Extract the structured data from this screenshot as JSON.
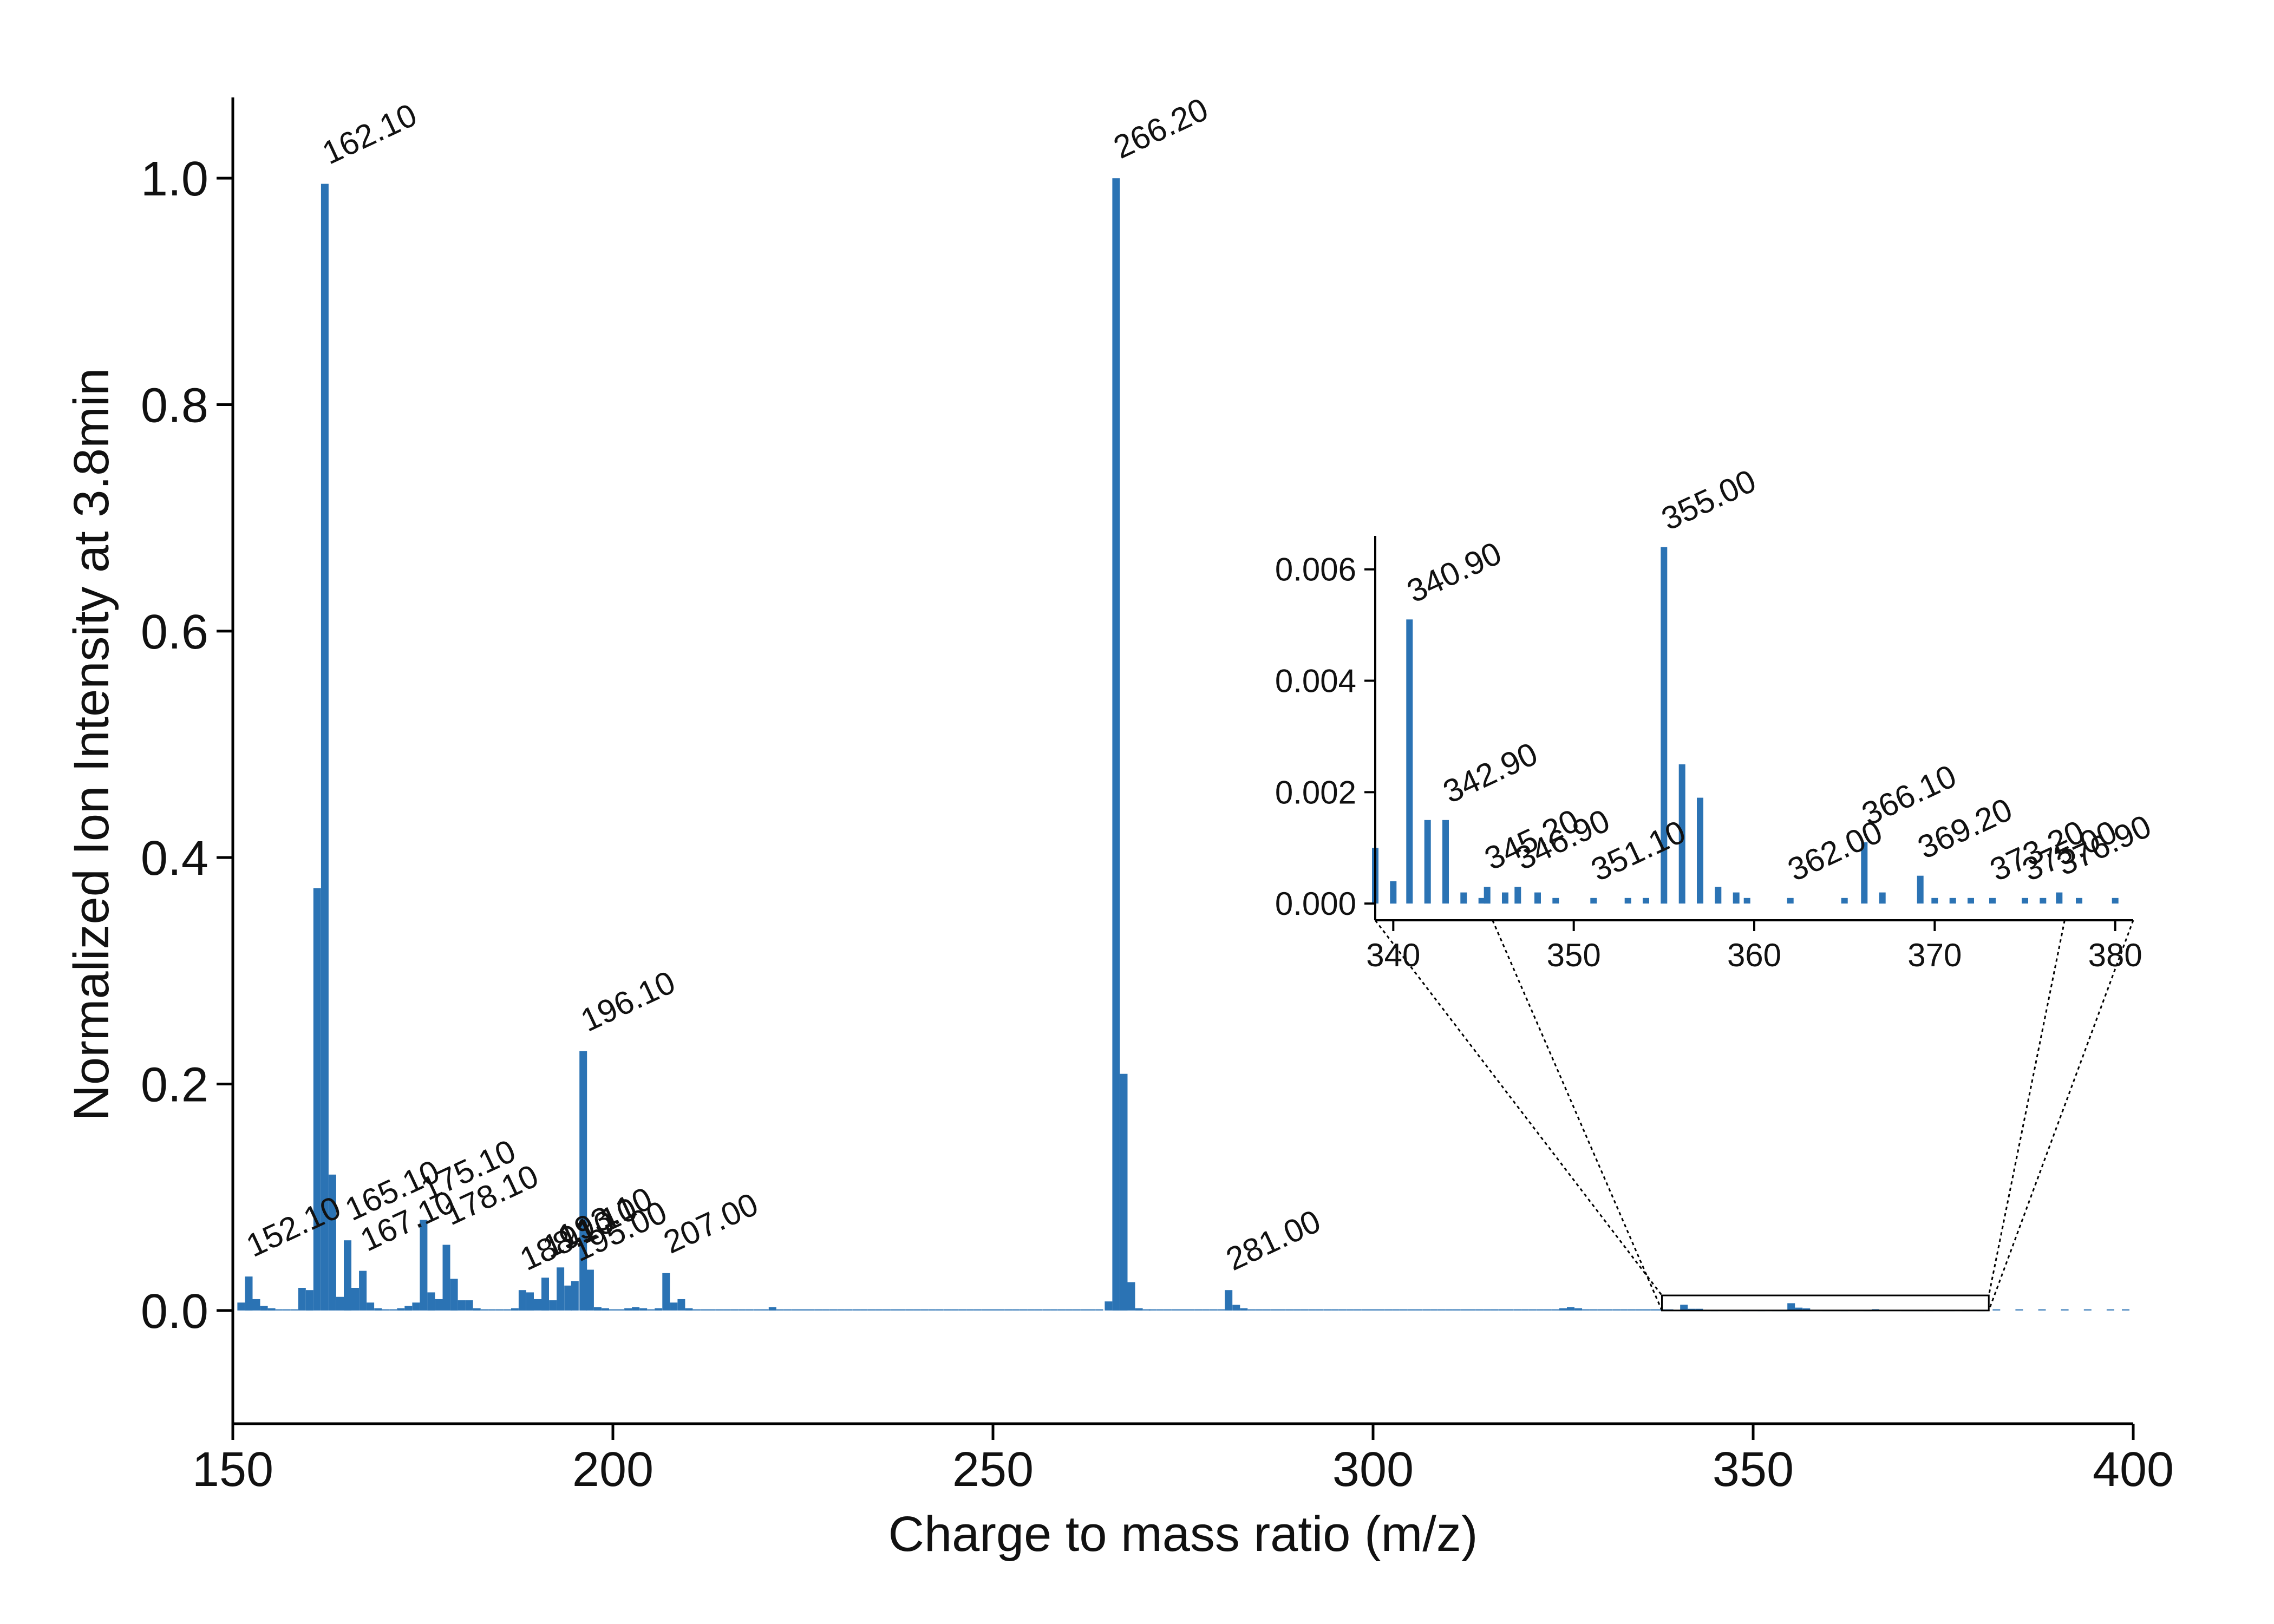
{
  "chart_data": [
    {
      "type": "bar",
      "title": "",
      "xlabel": "Charge to mass ratio (m/z)",
      "ylabel": "Normalized Ion Intensity at 3.8min",
      "xlim": [
        150,
        400
      ],
      "ylim": [
        -0.1,
        1.1
      ],
      "xticks": [
        150,
        200,
        250,
        300,
        350,
        400
      ],
      "xtick_labels": [
        "150",
        "200",
        "250",
        "300",
        "350",
        "400"
      ],
      "yticks": [
        0.0,
        0.2,
        0.4,
        0.6,
        0.8,
        1.0
      ],
      "ytick_labels": [
        "0.0",
        "0.2",
        "0.4",
        "0.6",
        "0.8",
        "1.0"
      ],
      "grid": false,
      "color": "#2b73b4",
      "points": [
        {
          "x": 151.1,
          "y": 0.007
        },
        {
          "x": 152.1,
          "y": 0.03
        },
        {
          "x": 153.1,
          "y": 0.01
        },
        {
          "x": 154.1,
          "y": 0.004
        },
        {
          "x": 155.1,
          "y": 0.002
        },
        {
          "x": 156.1,
          "y": 0.001
        },
        {
          "x": 157.1,
          "y": 0.001
        },
        {
          "x": 158.1,
          "y": 0.001
        },
        {
          "x": 159.1,
          "y": 0.02
        },
        {
          "x": 160.1,
          "y": 0.018
        },
        {
          "x": 161.1,
          "y": 0.373
        },
        {
          "x": 162.1,
          "y": 0.995
        },
        {
          "x": 163.1,
          "y": 0.12
        },
        {
          "x": 164.1,
          "y": 0.012
        },
        {
          "x": 165.1,
          "y": 0.062
        },
        {
          "x": 166.1,
          "y": 0.02
        },
        {
          "x": 167.1,
          "y": 0.035
        },
        {
          "x": 168.1,
          "y": 0.007
        },
        {
          "x": 169.1,
          "y": 0.002
        },
        {
          "x": 170.1,
          "y": 0.001
        },
        {
          "x": 171.1,
          "y": 0.001
        },
        {
          "x": 172.1,
          "y": 0.002
        },
        {
          "x": 173.1,
          "y": 0.004
        },
        {
          "x": 174.1,
          "y": 0.007
        },
        {
          "x": 175.1,
          "y": 0.08
        },
        {
          "x": 176.1,
          "y": 0.016
        },
        {
          "x": 177.1,
          "y": 0.01
        },
        {
          "x": 178.1,
          "y": 0.058
        },
        {
          "x": 179.1,
          "y": 0.028
        },
        {
          "x": 180.1,
          "y": 0.009
        },
        {
          "x": 181.1,
          "y": 0.009
        },
        {
          "x": 182.1,
          "y": 0.002
        },
        {
          "x": 183.1,
          "y": 0.001
        },
        {
          "x": 184.1,
          "y": 0.001
        },
        {
          "x": 185.1,
          "y": 0.001
        },
        {
          "x": 186.1,
          "y": 0.001
        },
        {
          "x": 187.1,
          "y": 0.002
        },
        {
          "x": 188.1,
          "y": 0.018
        },
        {
          "x": 189.1,
          "y": 0.016
        },
        {
          "x": 190.1,
          "y": 0.01
        },
        {
          "x": 191.1,
          "y": 0.029
        },
        {
          "x": 192.1,
          "y": 0.009
        },
        {
          "x": 193.1,
          "y": 0.038
        },
        {
          "x": 194.1,
          "y": 0.022
        },
        {
          "x": 195.0,
          "y": 0.026
        },
        {
          "x": 196.1,
          "y": 0.229
        },
        {
          "x": 197.0,
          "y": 0.036
        },
        {
          "x": 198.0,
          "y": 0.003
        },
        {
          "x": 199.0,
          "y": 0.002
        },
        {
          "x": 200.0,
          "y": 0.001
        },
        {
          "x": 201.0,
          "y": 0.001
        },
        {
          "x": 202.0,
          "y": 0.002
        },
        {
          "x": 203.0,
          "y": 0.003
        },
        {
          "x": 204.0,
          "y": 0.002
        },
        {
          "x": 205.0,
          "y": 0.001
        },
        {
          "x": 206.0,
          "y": 0.002
        },
        {
          "x": 207.0,
          "y": 0.033
        },
        {
          "x": 208.0,
          "y": 0.007
        },
        {
          "x": 209.0,
          "y": 0.01
        },
        {
          "x": 210.0,
          "y": 0.002
        },
        {
          "x": 211.0,
          "y": 0.001
        },
        {
          "x": 212.0,
          "y": 0.001
        },
        {
          "x": 213.0,
          "y": 0.001
        },
        {
          "x": 214.0,
          "y": 0.001
        },
        {
          "x": 215.0,
          "y": 0.001
        },
        {
          "x": 216.0,
          "y": 0.001
        },
        {
          "x": 217.0,
          "y": 0.001
        },
        {
          "x": 218.0,
          "y": 0.001
        },
        {
          "x": 219.0,
          "y": 0.001
        },
        {
          "x": 220.0,
          "y": 0.001
        },
        {
          "x": 221.0,
          "y": 0.003
        },
        {
          "x": 222.0,
          "y": 0.001
        },
        {
          "x": 223.0,
          "y": 0.001
        },
        {
          "x": 224.0,
          "y": 0.001
        },
        {
          "x": 225.0,
          "y": 0.001
        },
        {
          "x": 226.0,
          "y": 0.001
        },
        {
          "x": 227.0,
          "y": 0.001
        },
        {
          "x": 228.0,
          "y": 0.001
        },
        {
          "x": 229.0,
          "y": 0.001
        },
        {
          "x": 230.0,
          "y": 0.001
        },
        {
          "x": 231.0,
          "y": 0.001
        },
        {
          "x": 232.0,
          "y": 0.001
        },
        {
          "x": 233.0,
          "y": 0.001
        },
        {
          "x": 234.0,
          "y": 0.001
        },
        {
          "x": 235.0,
          "y": 0.001
        },
        {
          "x": 236.0,
          "y": 0.001
        },
        {
          "x": 237.0,
          "y": 0.001
        },
        {
          "x": 238.0,
          "y": 0.001
        },
        {
          "x": 239.0,
          "y": 0.001
        },
        {
          "x": 240.0,
          "y": 0.001
        },
        {
          "x": 241.0,
          "y": 0.001
        },
        {
          "x": 242.0,
          "y": 0.001
        },
        {
          "x": 243.0,
          "y": 0.001
        },
        {
          "x": 244.0,
          "y": 0.001
        },
        {
          "x": 245.0,
          "y": 0.001
        },
        {
          "x": 246.0,
          "y": 0.001
        },
        {
          "x": 247.0,
          "y": 0.001
        },
        {
          "x": 248.0,
          "y": 0.001
        },
        {
          "x": 249.0,
          "y": 0.001
        },
        {
          "x": 250.0,
          "y": 0.001
        },
        {
          "x": 251.0,
          "y": 0.001
        },
        {
          "x": 252.0,
          "y": 0.001
        },
        {
          "x": 253.0,
          "y": 0.001
        },
        {
          "x": 254.0,
          "y": 0.001
        },
        {
          "x": 255.0,
          "y": 0.001
        },
        {
          "x": 256.0,
          "y": 0.001
        },
        {
          "x": 257.0,
          "y": 0.001
        },
        {
          "x": 258.0,
          "y": 0.001
        },
        {
          "x": 259.0,
          "y": 0.001
        },
        {
          "x": 260.0,
          "y": 0.001
        },
        {
          "x": 261.0,
          "y": 0.001
        },
        {
          "x": 262.0,
          "y": 0.001
        },
        {
          "x": 263.0,
          "y": 0.001
        },
        {
          "x": 264.0,
          "y": 0.001
        },
        {
          "x": 265.2,
          "y": 0.008
        },
        {
          "x": 266.2,
          "y": 1.0
        },
        {
          "x": 267.2,
          "y": 0.209
        },
        {
          "x": 268.2,
          "y": 0.025
        },
        {
          "x": 269.2,
          "y": 0.002
        },
        {
          "x": 270.2,
          "y": 0.001
        },
        {
          "x": 271.0,
          "y": 0.001
        },
        {
          "x": 272.0,
          "y": 0.001
        },
        {
          "x": 273.0,
          "y": 0.001
        },
        {
          "x": 274.0,
          "y": 0.001
        },
        {
          "x": 275.0,
          "y": 0.001
        },
        {
          "x": 276.0,
          "y": 0.001
        },
        {
          "x": 277.0,
          "y": 0.001
        },
        {
          "x": 278.0,
          "y": 0.001
        },
        {
          "x": 279.0,
          "y": 0.001
        },
        {
          "x": 280.0,
          "y": 0.001
        },
        {
          "x": 281.0,
          "y": 0.018
        },
        {
          "x": 282.0,
          "y": 0.005
        },
        {
          "x": 283.0,
          "y": 0.002
        },
        {
          "x": 284.0,
          "y": 0.001
        },
        {
          "x": 285.0,
          "y": 0.001
        },
        {
          "x": 286.0,
          "y": 0.001
        },
        {
          "x": 287.0,
          "y": 0.001
        },
        {
          "x": 288.0,
          "y": 0.001
        },
        {
          "x": 289.0,
          "y": 0.001
        },
        {
          "x": 290.0,
          "y": 0.001
        },
        {
          "x": 291.0,
          "y": 0.001
        },
        {
          "x": 292.0,
          "y": 0.001
        },
        {
          "x": 293.0,
          "y": 0.001
        },
        {
          "x": 294.0,
          "y": 0.001
        },
        {
          "x": 295.0,
          "y": 0.001
        },
        {
          "x": 296.0,
          "y": 0.001
        },
        {
          "x": 297.0,
          "y": 0.001
        },
        {
          "x": 298.0,
          "y": 0.001
        },
        {
          "x": 299.0,
          "y": 0.001
        },
        {
          "x": 300.0,
          "y": 0.001
        },
        {
          "x": 301.0,
          "y": 0.001
        },
        {
          "x": 302.0,
          "y": 0.001
        },
        {
          "x": 303.0,
          "y": 0.001
        },
        {
          "x": 304.0,
          "y": 0.001
        },
        {
          "x": 305.0,
          "y": 0.001
        },
        {
          "x": 306.0,
          "y": 0.001
        },
        {
          "x": 307.0,
          "y": 0.001
        },
        {
          "x": 308.0,
          "y": 0.001
        },
        {
          "x": 309.0,
          "y": 0.001
        },
        {
          "x": 310.0,
          "y": 0.001
        },
        {
          "x": 311.0,
          "y": 0.001
        },
        {
          "x": 312.0,
          "y": 0.001
        },
        {
          "x": 313.0,
          "y": 0.001
        },
        {
          "x": 314.0,
          "y": 0.001
        },
        {
          "x": 315.0,
          "y": 0.001
        },
        {
          "x": 316.0,
          "y": 0.001
        },
        {
          "x": 317.0,
          "y": 0.001
        },
        {
          "x": 318.0,
          "y": 0.001
        },
        {
          "x": 319.0,
          "y": 0.001
        },
        {
          "x": 320.0,
          "y": 0.001
        },
        {
          "x": 321.0,
          "y": 0.001
        },
        {
          "x": 322.0,
          "y": 0.001
        },
        {
          "x": 323.0,
          "y": 0.001
        },
        {
          "x": 324.0,
          "y": 0.001
        },
        {
          "x": 325.0,
          "y": 0.002
        },
        {
          "x": 326.0,
          "y": 0.003
        },
        {
          "x": 327.0,
          "y": 0.002
        },
        {
          "x": 328.0,
          "y": 0.001
        },
        {
          "x": 329.0,
          "y": 0.001
        },
        {
          "x": 330.0,
          "y": 0.001
        },
        {
          "x": 331.0,
          "y": 0.001
        },
        {
          "x": 332.0,
          "y": 0.001
        },
        {
          "x": 333.0,
          "y": 0.001
        },
        {
          "x": 334.0,
          "y": 0.001
        },
        {
          "x": 335.0,
          "y": 0.001
        },
        {
          "x": 336.0,
          "y": 0.001
        },
        {
          "x": 337.0,
          "y": 0.001
        },
        {
          "x": 338.0,
          "y": 0.001
        },
        {
          "x": 339.0,
          "y": 0.001
        },
        {
          "x": 340.0,
          "y": 0.0004
        },
        {
          "x": 340.9,
          "y": 0.0051
        },
        {
          "x": 341.9,
          "y": 0.0015
        },
        {
          "x": 342.9,
          "y": 0.0015
        },
        {
          "x": 343.9,
          "y": 0.0002
        },
        {
          "x": 344.9,
          "y": 0.0001
        },
        {
          "x": 345.2,
          "y": 0.0003
        },
        {
          "x": 346.2,
          "y": 0.0002
        },
        {
          "x": 346.9,
          "y": 0.0003
        },
        {
          "x": 348.0,
          "y": 0.0002
        },
        {
          "x": 349.0,
          "y": 0.0001
        },
        {
          "x": 351.1,
          "y": 0.0001
        },
        {
          "x": 353.0,
          "y": 0.0001
        },
        {
          "x": 354.0,
          "y": 0.0001
        },
        {
          "x": 355.0,
          "y": 0.0064
        },
        {
          "x": 356.0,
          "y": 0.0025
        },
        {
          "x": 357.0,
          "y": 0.0019
        },
        {
          "x": 358.0,
          "y": 0.0003
        },
        {
          "x": 359.0,
          "y": 0.0002
        },
        {
          "x": 359.6,
          "y": 0.0001
        },
        {
          "x": 362.0,
          "y": 0.0001
        },
        {
          "x": 365.0,
          "y": 0.0001
        },
        {
          "x": 366.1,
          "y": 0.0011
        },
        {
          "x": 367.1,
          "y": 0.0002
        },
        {
          "x": 369.2,
          "y": 0.0005
        },
        {
          "x": 370.0,
          "y": 0.0001
        },
        {
          "x": 371.0,
          "y": 0.0001
        },
        {
          "x": 372.0,
          "y": 0.0001
        },
        {
          "x": 373.2,
          "y": 0.0001
        },
        {
          "x": 375.0,
          "y": 0.0001
        },
        {
          "x": 376.0,
          "y": 0.0001
        },
        {
          "x": 376.9,
          "y": 0.0002
        },
        {
          "x": 378.0,
          "y": 0.0001
        },
        {
          "x": 380.0,
          "y": 0.0001
        },
        {
          "x": 382.0,
          "y": 0.001
        },
        {
          "x": 385.0,
          "y": 0.001
        },
        {
          "x": 388.0,
          "y": 0.001
        },
        {
          "x": 391.0,
          "y": 0.001
        },
        {
          "x": 394.0,
          "y": 0.001
        },
        {
          "x": 397.0,
          "y": 0.001
        },
        {
          "x": 399.0,
          "y": 0.001
        }
      ],
      "annotations": [
        {
          "x": 152.1,
          "y": 0.03,
          "text": "152.10"
        },
        {
          "x": 162.1,
          "y": 0.995,
          "text": "162.10"
        },
        {
          "x": 165.1,
          "y": 0.062,
          "text": "165.10"
        },
        {
          "x": 167.1,
          "y": 0.035,
          "text": "167.10"
        },
        {
          "x": 175.1,
          "y": 0.08,
          "text": "175.10"
        },
        {
          "x": 178.1,
          "y": 0.058,
          "text": "178.10"
        },
        {
          "x": 188.1,
          "y": 0.018,
          "text": "188.10"
        },
        {
          "x": 191.1,
          "y": 0.029,
          "text": "191.10"
        },
        {
          "x": 193.1,
          "y": 0.038,
          "text": "193.10"
        },
        {
          "x": 195.0,
          "y": 0.026,
          "text": "195.00"
        },
        {
          "x": 196.1,
          "y": 0.229,
          "text": "196.10"
        },
        {
          "x": 207.0,
          "y": 0.033,
          "text": "207.00"
        },
        {
          "x": 266.2,
          "y": 1.0,
          "text": "266.20"
        },
        {
          "x": 281.0,
          "y": 0.018,
          "text": "281.00"
        }
      ]
    },
    {
      "type": "bar",
      "title": "",
      "xlabel": "",
      "ylabel": "",
      "xlim": [
        339,
        381
      ],
      "ylim": [
        -0.0003,
        0.0066
      ],
      "xticks": [
        340,
        350,
        360,
        370,
        380
      ],
      "xtick_labels": [
        "340",
        "350",
        "360",
        "370",
        "380"
      ],
      "yticks": [
        0.0,
        0.002,
        0.004,
        0.006
      ],
      "ytick_labels": [
        "0.000",
        "0.002",
        "0.004",
        "0.006"
      ],
      "grid": false,
      "color": "#2b73b4",
      "zoom_region": {
        "x": [
          338,
          381
        ],
        "y": [
          0.0,
          0.0066
        ]
      },
      "annotations": [
        {
          "x": 340.9,
          "y": 0.0051,
          "text": "340.90"
        },
        {
          "x": 342.9,
          "y": 0.0015,
          "text": "342.90"
        },
        {
          "x": 345.2,
          "y": 0.0003,
          "text": "345.20"
        },
        {
          "x": 346.9,
          "y": 0.0003,
          "text": "346.90"
        },
        {
          "x": 351.1,
          "y": 0.0001,
          "text": "351.10"
        },
        {
          "x": 355.0,
          "y": 0.0064,
          "text": "355.00"
        },
        {
          "x": 362.0,
          "y": 0.0001,
          "text": "362.00"
        },
        {
          "x": 366.1,
          "y": 0.0011,
          "text": "366.10"
        },
        {
          "x": 369.2,
          "y": 0.0005,
          "text": "369.20"
        },
        {
          "x": 373.2,
          "y": 0.0001,
          "text": "373.20"
        },
        {
          "x": 375.0,
          "y": 0.0001,
          "text": "375.00"
        },
        {
          "x": 376.9,
          "y": 0.0002,
          "text": "376.90"
        }
      ]
    }
  ]
}
